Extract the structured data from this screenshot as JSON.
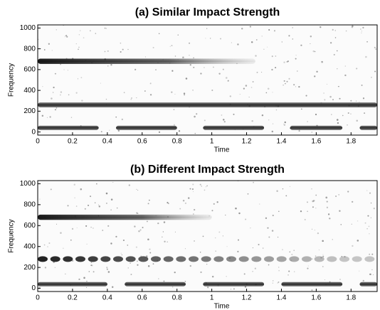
{
  "chart_data": [
    {
      "type": "spectrogram",
      "title": "(a) Similar Impact Strength",
      "x_label": "Time",
      "y_label": "Frequency",
      "xlim": [
        0,
        1.95
      ],
      "ylim": [
        -30,
        1030
      ],
      "xticks": [
        0,
        0.2,
        0.4,
        0.6,
        0.8,
        1,
        1.2,
        1.4,
        1.6,
        1.8
      ],
      "yticks": [
        0,
        200,
        400,
        600,
        800,
        1000
      ],
      "bands": [
        {
          "frequency": 680,
          "start": 0,
          "end": 1.25,
          "width": 50,
          "fade": true,
          "pulsed": false
        },
        {
          "frequency": 260,
          "start": 0,
          "end": 1.95,
          "width": 45,
          "fade": false,
          "pulsed": false
        },
        {
          "frequency": 40,
          "start": 0,
          "end": 0.35,
          "width": 40,
          "fade": false,
          "pulsed": false
        },
        {
          "frequency": 40,
          "start": 0.45,
          "end": 0.8,
          "width": 40,
          "fade": false,
          "pulsed": false
        },
        {
          "frequency": 40,
          "start": 0.95,
          "end": 1.3,
          "width": 40,
          "fade": false,
          "pulsed": false
        },
        {
          "frequency": 40,
          "start": 1.45,
          "end": 1.75,
          "width": 40,
          "fade": false,
          "pulsed": false
        },
        {
          "frequency": 40,
          "start": 1.85,
          "end": 1.95,
          "width": 40,
          "fade": false,
          "pulsed": false
        }
      ]
    },
    {
      "type": "spectrogram",
      "title": "(b) Different Impact Strength",
      "x_label": "Time",
      "y_label": "Frequency",
      "xlim": [
        0,
        1.95
      ],
      "ylim": [
        -30,
        1030
      ],
      "xticks": [
        0,
        0.2,
        0.4,
        0.6,
        0.8,
        1,
        1.2,
        1.4,
        1.6,
        1.8
      ],
      "yticks": [
        0,
        200,
        400,
        600,
        800,
        1000
      ],
      "bands": [
        {
          "frequency": 680,
          "start": 0,
          "end": 1.0,
          "width": 50,
          "fade": true,
          "pulsed": false
        },
        {
          "frequency": 280,
          "start": 0,
          "end": 1.95,
          "width": 55,
          "fade": true,
          "pulsed": true
        },
        {
          "frequency": 40,
          "start": 0,
          "end": 0.4,
          "width": 40,
          "fade": false,
          "pulsed": false
        },
        {
          "frequency": 40,
          "start": 0.5,
          "end": 0.85,
          "width": 40,
          "fade": false,
          "pulsed": false
        },
        {
          "frequency": 40,
          "start": 0.95,
          "end": 1.3,
          "width": 40,
          "fade": false,
          "pulsed": false
        },
        {
          "frequency": 40,
          "start": 1.4,
          "end": 1.75,
          "width": 40,
          "fade": false,
          "pulsed": false
        },
        {
          "frequency": 40,
          "start": 1.85,
          "end": 1.95,
          "width": 40,
          "fade": false,
          "pulsed": false
        }
      ]
    }
  ]
}
